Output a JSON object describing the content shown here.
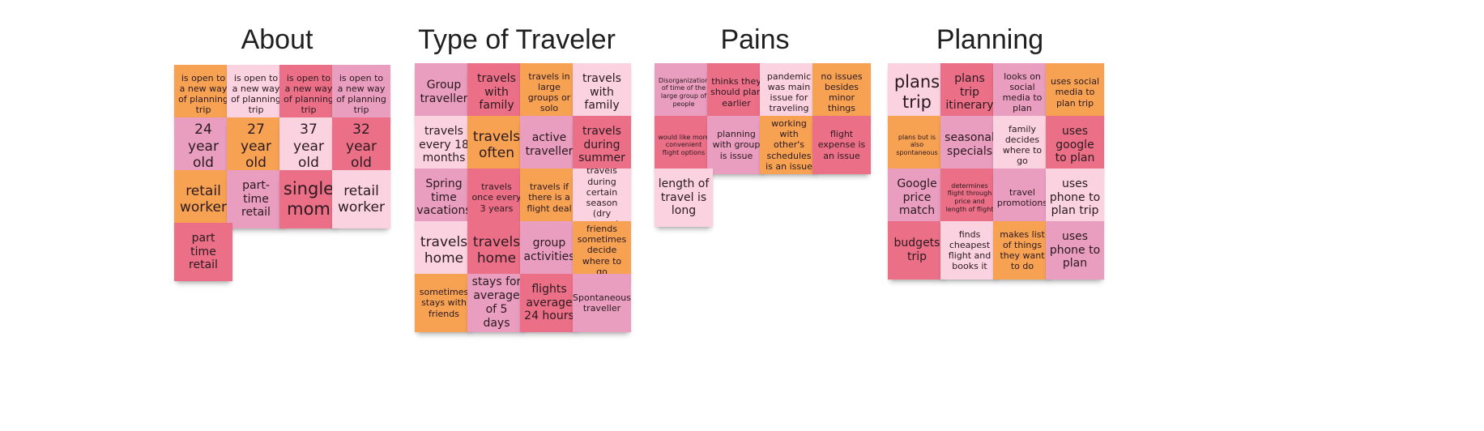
{
  "colors": {
    "orange": "#f7a153",
    "light_pink": "#fbd3e0",
    "red_pink": "#ec6f88",
    "pink": "#e99ebf"
  },
  "columns": [
    {
      "title": "About",
      "notes": [
        "is open to a new way of planning trip",
        "is open to a new way of planning trip",
        "is open to a new way of planning trip",
        "is open to a new way of planning trip",
        "24 year old",
        "27 year old",
        "37 year old",
        "32 year old",
        "retail worker",
        "part-time retail",
        "single mom",
        "retail worker",
        "part time retail"
      ]
    },
    {
      "title": "Type of Traveler",
      "notes": [
        "Group traveller",
        "travels with family",
        "travels in large groups or solo",
        "travels with family",
        "travels every 18 months",
        "travels often",
        "active traveller",
        "travels during summer",
        "Spring time vacations",
        "travels once every 3 years",
        "travels if there is a flight deal",
        "travels during certain season (dry season)",
        "travels home",
        "travels home",
        "group activities",
        "friends sometimes decide where to go",
        "sometimes stays with friends",
        "stays for average of 5 days",
        "flights average 24 hours",
        "Spontaneous traveller"
      ]
    },
    {
      "title": "Pains",
      "notes": [
        "Disorganization of time of the large group of people",
        "thinks they should plan earlier",
        "pandemic was main issue for traveling",
        "no issues besides minor things",
        "would like more convenient flight options",
        "planning with group is issue",
        "working with other's schedules is an issue",
        "flight expense is an issue",
        "length of travel is long"
      ]
    },
    {
      "title": "Planning",
      "notes": [
        "plans trip",
        "plans trip itinerary",
        "looks on social media to plan",
        "uses social media to plan trip",
        "plans but is also spontaneous",
        "seasonal specials",
        "family decides where to go",
        "uses google to plan",
        "Google price match",
        "determines flight through price and length of flight",
        "travel promotions",
        "uses phone to plan trip",
        "budgets trip",
        "finds cheapest flight and books it",
        "makes list of things they want to do",
        "uses phone to plan"
      ]
    }
  ]
}
